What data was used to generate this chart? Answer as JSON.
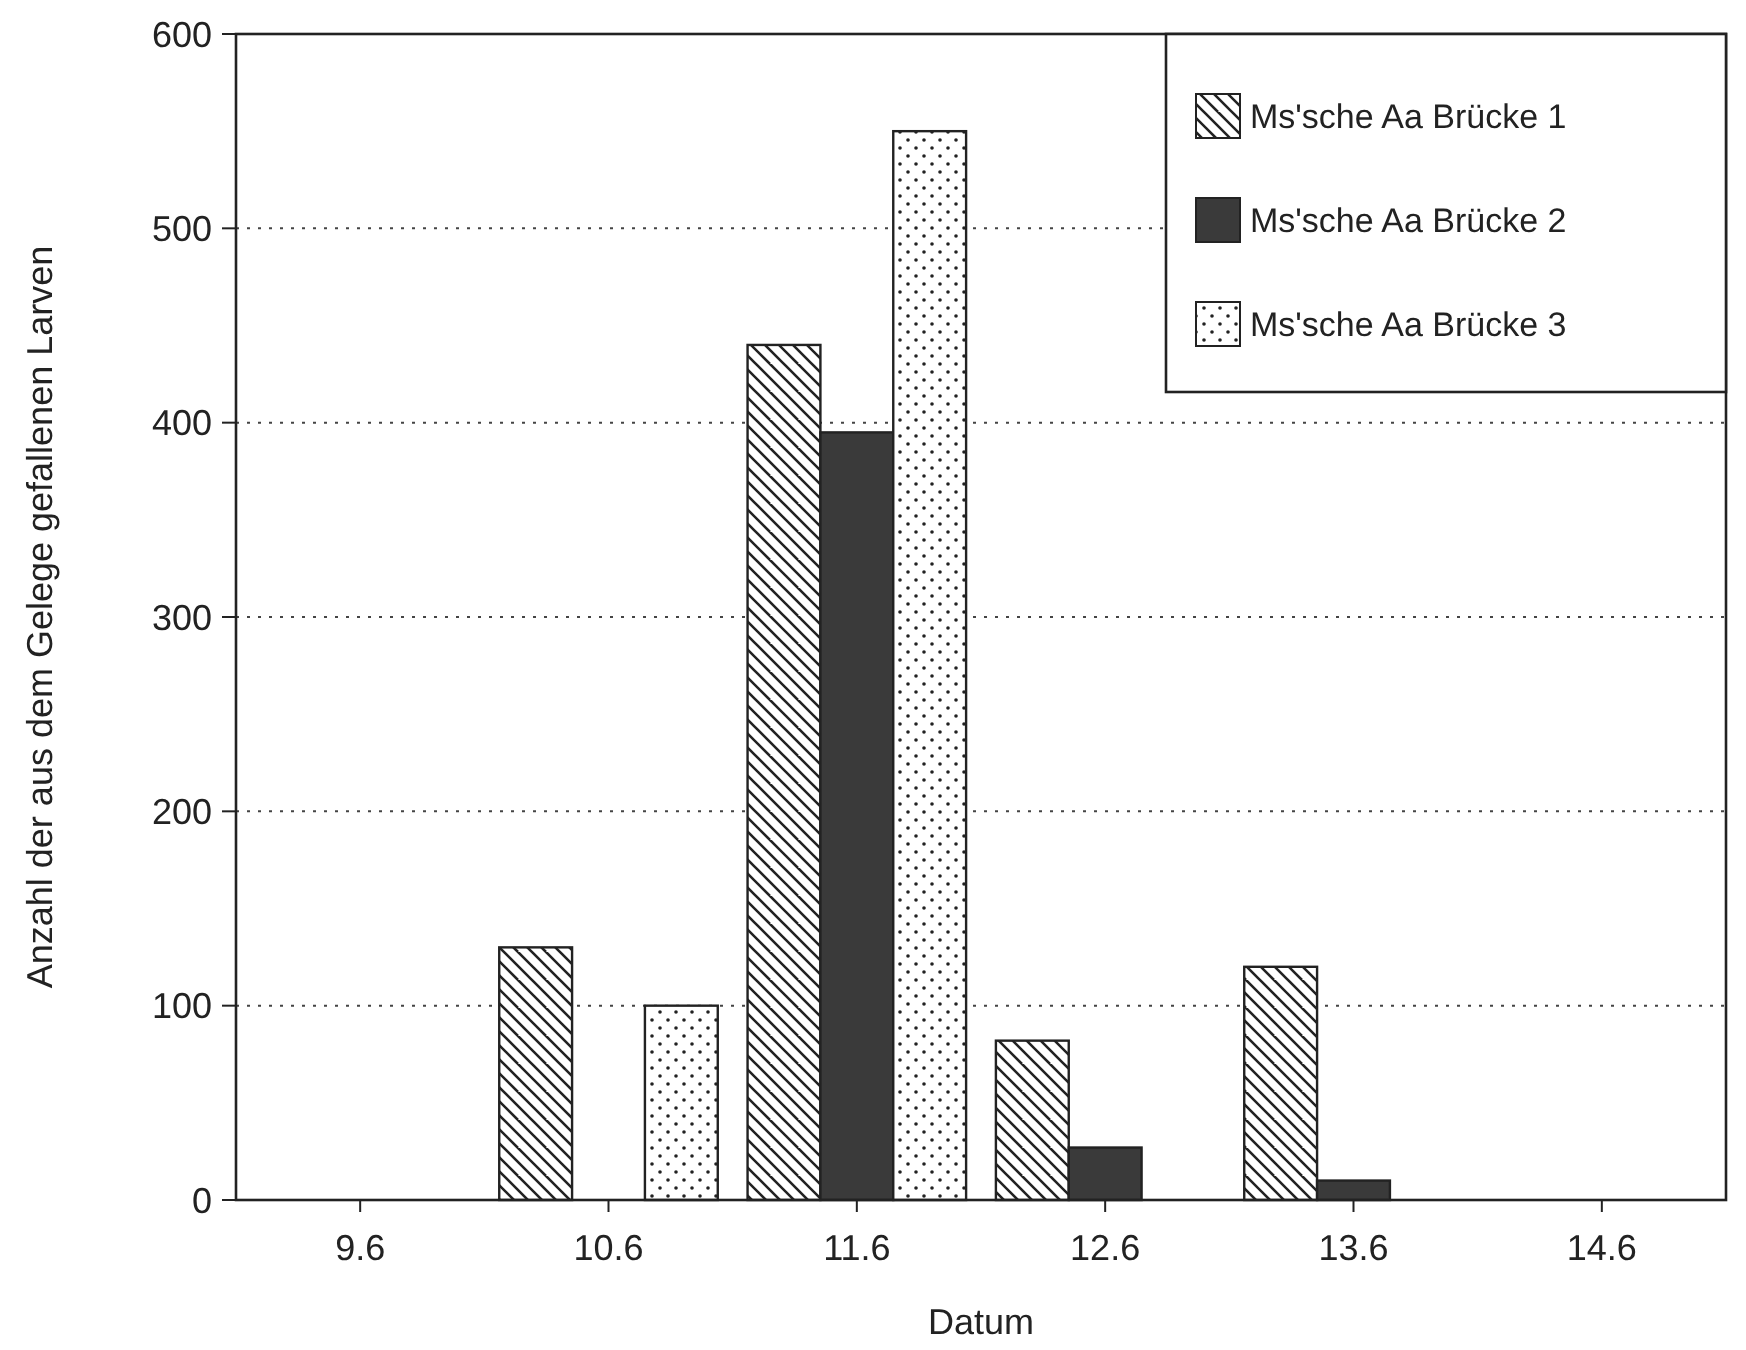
{
  "chart_data": {
    "type": "bar",
    "xlabel": "Datum",
    "ylabel": "Anzahl der aus dem Gelege gefallenen Larven",
    "categories": [
      "9.6",
      "10.6",
      "11.6",
      "12.6",
      "13.6",
      "14.6"
    ],
    "series": [
      {
        "name": "Ms'sche Aa Brücke 1",
        "color": "#222222",
        "values": [
          0,
          130,
          440,
          82,
          120,
          0
        ]
      },
      {
        "name": "Ms'sche Aa Brücke 2",
        "color": "#3a3a3a",
        "values": [
          0,
          0,
          395,
          27,
          10,
          0
        ]
      },
      {
        "name": "Ms'sche Aa Brücke 3",
        "color": "#222222",
        "values": [
          0,
          100,
          550,
          0,
          0,
          0
        ]
      }
    ],
    "ylim": [
      0,
      600
    ],
    "yticks": [
      0,
      100,
      200,
      300,
      400,
      500,
      600
    ],
    "grid": "y",
    "legend": "top right"
  }
}
